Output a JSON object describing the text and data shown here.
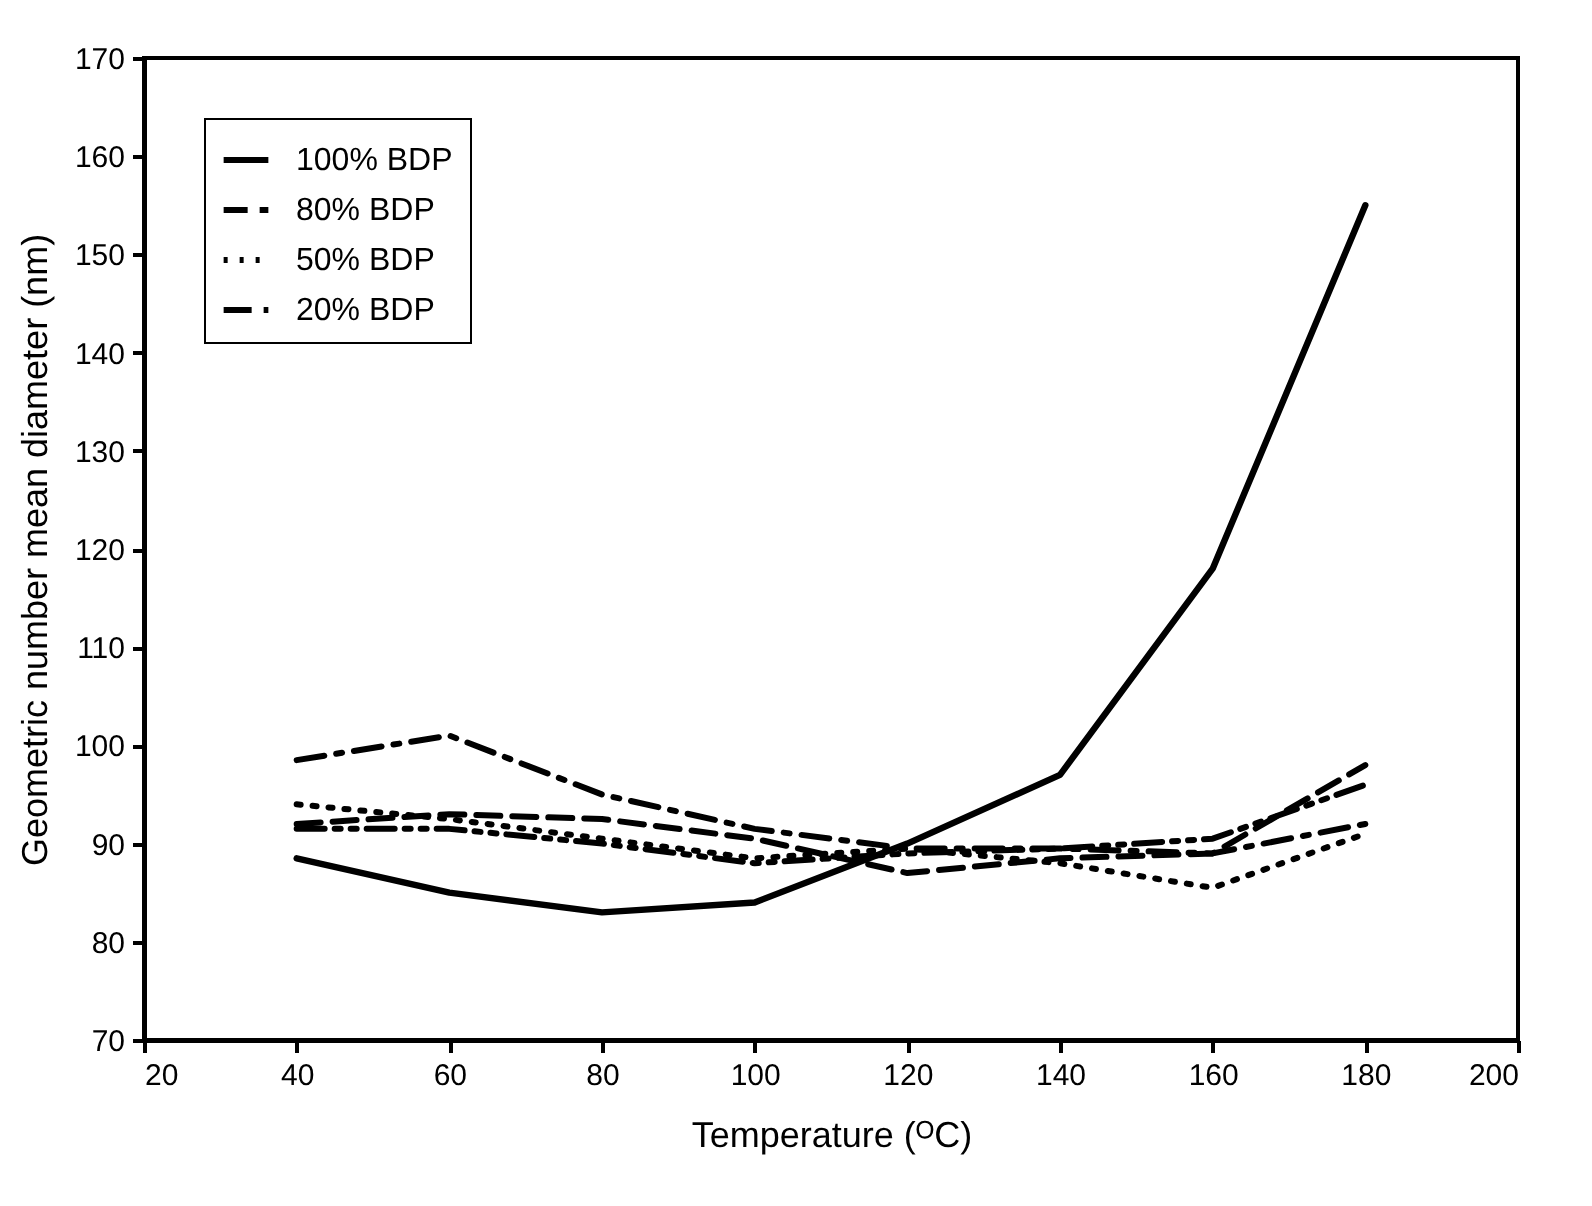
{
  "chart_data": {
    "type": "line",
    "xlabel": "Temperature (ᴼC)",
    "ylabel": "Geometric number mean diameter (nm)",
    "x": [
      40,
      60,
      80,
      100,
      120,
      140,
      160,
      180
    ],
    "xlim": [
      20,
      200
    ],
    "xticks": [
      20,
      40,
      60,
      80,
      100,
      120,
      140,
      160,
      180,
      200
    ],
    "ylim": [
      70,
      170
    ],
    "yticks": [
      70,
      80,
      90,
      100,
      110,
      120,
      130,
      140,
      150,
      160,
      170
    ],
    "grid": false,
    "legend": "top left",
    "marker": "none",
    "series": [
      {
        "name": "100% BDP",
        "color": "#000000",
        "line_style": "solid",
        "values": [
          88.5,
          85,
          83,
          84,
          90,
          97,
          118,
          155
        ]
      },
      {
        "name": "80% BDP",
        "color": "#000000",
        "line_style": "dashed",
        "values": [
          92,
          93,
          92.5,
          90.5,
          87,
          88.5,
          89,
          98
        ]
      },
      {
        "name": "50% BDP",
        "color": "#000000",
        "line_style": "dotted",
        "values": [
          94,
          92.5,
          90.5,
          88.5,
          89.5,
          88,
          85.5,
          91
        ]
      },
      {
        "name": "20% BDP",
        "color": "#000000",
        "line_style": "dashdot",
        "values": [
          98.5,
          101,
          95,
          91.5,
          89.5,
          89.5,
          89,
          92
        ]
      },
      {
        "color": "#000000",
        "line_style": "dashdotdot",
        "values": [
          91.5,
          91.5,
          90,
          88,
          89,
          89.5,
          90.5,
          96
        ]
      }
    ]
  }
}
